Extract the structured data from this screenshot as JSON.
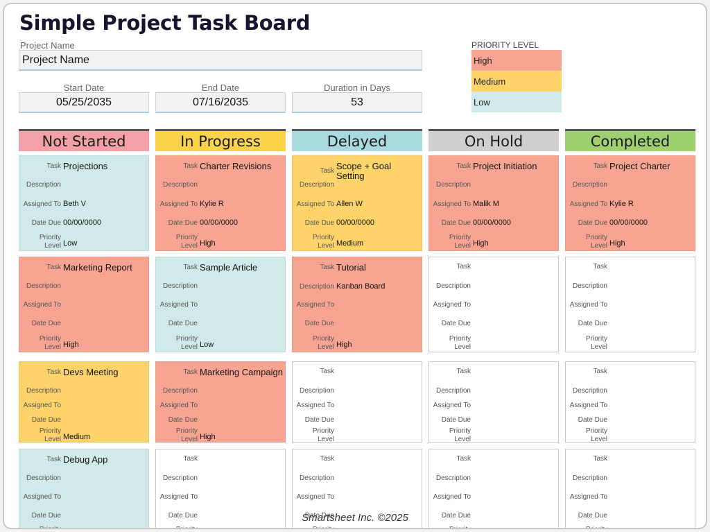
{
  "title": "Simple Project Task Board",
  "project": {
    "label": "Project Name",
    "value": "Project Name"
  },
  "dates": {
    "start_label": "Start Date",
    "start": "05/25/2035",
    "end_label": "End Date",
    "end": "07/16/2035",
    "duration_label": "Duration in Days",
    "duration": "53"
  },
  "priority_legend": {
    "label": "PRIORITY LEVEL",
    "items": [
      {
        "name": "High",
        "color": "#f7a592"
      },
      {
        "name": "Medium",
        "color": "#fdd36a"
      },
      {
        "name": "Low",
        "color": "#d0e9e9"
      }
    ]
  },
  "field_labels": {
    "task": "Task",
    "description": "Description",
    "assigned": "Assigned To",
    "date_due": "Date Due",
    "priority_line1": "Priority",
    "priority_line2": "Level"
  },
  "columns": [
    {
      "name": "Not Started",
      "color": "#f4a0a8",
      "cards": [
        {
          "priority": "low",
          "task": "Projections",
          "description": "",
          "assigned": "Beth V",
          "date_due": "00/00/0000",
          "priority_text": "Low"
        },
        {
          "priority": "high",
          "task": "Marketing Report",
          "description": "",
          "assigned": "",
          "date_due": "",
          "priority_text": "High"
        },
        {
          "priority": "medium",
          "task": "Devs Meeting",
          "description": "",
          "assigned": "",
          "date_due": "",
          "priority_text": "Medium"
        },
        {
          "priority": "low",
          "task": "Debug App",
          "description": "",
          "assigned": "",
          "date_due": "",
          "priority_text": ""
        }
      ]
    },
    {
      "name": "In Progress",
      "color": "#fbd34a",
      "cards": [
        {
          "priority": "high",
          "task": "Charter Revisions",
          "description": "",
          "assigned": "Kylie R",
          "date_due": "00/00/0000",
          "priority_text": "High"
        },
        {
          "priority": "low",
          "task": "Sample Article",
          "description": "",
          "assigned": "",
          "date_due": "",
          "priority_text": "Low"
        },
        {
          "priority": "high",
          "task": "Marketing Campaign",
          "description": "",
          "assigned": "",
          "date_due": "",
          "priority_text": "High"
        },
        {
          "priority": "empty",
          "task": "",
          "description": "",
          "assigned": "",
          "date_due": "",
          "priority_text": ""
        }
      ]
    },
    {
      "name": "Delayed",
      "color": "#a8dade",
      "cards": [
        {
          "priority": "medium",
          "task": "Scope + Goal Setting",
          "description": "",
          "assigned": "Allen W",
          "date_due": "00/00/0000",
          "priority_text": "Medium"
        },
        {
          "priority": "high",
          "task": "Tutorial",
          "description": "Kanban Board",
          "assigned": "",
          "date_due": "",
          "priority_text": "High"
        },
        {
          "priority": "empty",
          "task": "",
          "description": "",
          "assigned": "",
          "date_due": "",
          "priority_text": ""
        },
        {
          "priority": "empty",
          "task": "",
          "description": "",
          "assigned": "",
          "date_due": "",
          "priority_text": ""
        }
      ]
    },
    {
      "name": "On Hold",
      "color": "#cfcfcf",
      "cards": [
        {
          "priority": "high",
          "task": "Project Initiation",
          "description": "",
          "assigned": "Malik M",
          "date_due": "00/00/0000",
          "priority_text": "High"
        },
        {
          "priority": "empty",
          "task": "",
          "description": "",
          "assigned": "",
          "date_due": "",
          "priority_text": ""
        },
        {
          "priority": "empty",
          "task": "",
          "description": "",
          "assigned": "",
          "date_due": "",
          "priority_text": ""
        },
        {
          "priority": "empty",
          "task": "",
          "description": "",
          "assigned": "",
          "date_due": "",
          "priority_text": ""
        }
      ]
    },
    {
      "name": "Completed",
      "color": "#9fd070",
      "cards": [
        {
          "priority": "high",
          "task": "Project Charter",
          "description": "",
          "assigned": "Kylie R",
          "date_due": "00/00/0000",
          "priority_text": "High"
        },
        {
          "priority": "empty",
          "task": "",
          "description": "",
          "assigned": "",
          "date_due": "",
          "priority_text": ""
        },
        {
          "priority": "empty",
          "task": "",
          "description": "",
          "assigned": "",
          "date_due": "",
          "priority_text": ""
        },
        {
          "priority": "empty",
          "task": "",
          "description": "",
          "assigned": "",
          "date_due": "",
          "priority_text": ""
        }
      ]
    }
  ],
  "footer": "Smartsheet Inc. ©2025"
}
